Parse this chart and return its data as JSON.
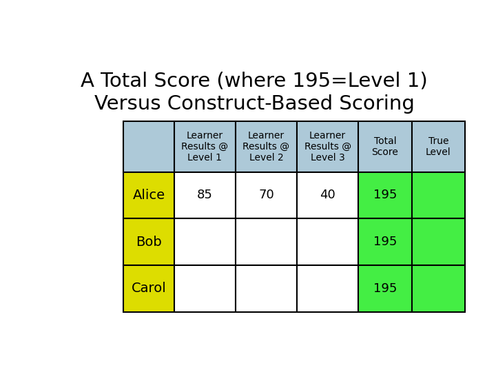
{
  "title_line1": "A Total Score (where 195=Level 1)",
  "title_line2": "Versus Construct-Based Scoring",
  "title_fontsize": 21,
  "background_color": "#ffffff",
  "col_headers": [
    "Learner\nResults @\nLevel 1",
    "Learner\nResults @\nLevel 2",
    "Learner\nResults @\nLevel 3",
    "Total\nScore",
    "True\nLevel"
  ],
  "row_labels": [
    "Alice",
    "Bob",
    "Carol"
  ],
  "cell_data": [
    [
      "85",
      "70",
      "40",
      "195",
      ""
    ],
    [
      "",
      "",
      "",
      "195",
      ""
    ],
    [
      "",
      "",
      "",
      "195",
      ""
    ]
  ],
  "header_bg": "#adc9d8",
  "row_label_bg": "#dddd00",
  "total_score_bg": "#44ee44",
  "true_level_bg": "#44ee44",
  "data_cell_bg": "#ffffff",
  "border_color": "#000000",
  "header_fontsize": 10,
  "data_fontsize": 13,
  "label_fontsize": 14
}
